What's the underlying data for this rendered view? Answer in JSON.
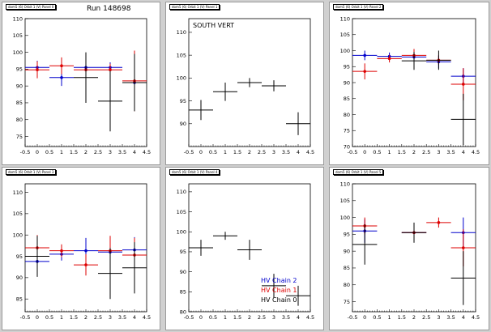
{
  "colors": {
    "chain0": "#000000",
    "chain1": "#dd0000",
    "chain2": "#0000cc",
    "background": "#d0d0d0"
  },
  "legend": [
    {
      "label": "HV Chain 2",
      "color": "#0000cc"
    },
    {
      "label": "HV Chain 1",
      "color": "#dd0000"
    },
    {
      "label": "HV Chain 0",
      "color": "#000000"
    }
  ],
  "pads": [
    {
      "title": "dom5 (6) Orbit 1 (V) Panel 0",
      "label": "Run 148698",
      "xlim": [
        -0.5,
        4.5
      ],
      "ylim": [
        72,
        110
      ],
      "yticks": [
        75,
        80,
        85,
        90,
        95,
        100,
        105,
        110
      ]
    },
    {
      "title": "dom5 (6) Orbit 1 (V) Panel 1",
      "label": "SOUTH VERT",
      "xlim": [
        -0.5,
        4.5
      ],
      "ylim": [
        85,
        113
      ],
      "yticks": [
        90,
        95,
        100,
        105,
        110
      ]
    },
    {
      "title": "dom5 (6) Orbit 1 (V) Panel 2",
      "label": "",
      "xlim": [
        -0.5,
        4.5
      ],
      "ylim": [
        70,
        110
      ],
      "yticks": [
        70,
        75,
        80,
        85,
        90,
        95,
        100,
        105,
        110
      ]
    },
    {
      "title": "dom5 (6) Orbit 1 (V) Panel 3",
      "label": "",
      "xlim": [
        -0.5,
        4.5
      ],
      "ylim": [
        82,
        112
      ],
      "yticks": [
        85,
        90,
        95,
        100,
        105,
        110
      ]
    },
    {
      "title": "dom5 (6) Orbit 1 (V) Panel 4",
      "label": "",
      "xlim": [
        -0.5,
        4.5
      ],
      "ylim": [
        80,
        112
      ],
      "yticks": [
        80,
        85,
        90,
        95,
        100,
        105,
        110
      ]
    },
    {
      "title": "dom5 (6) Orbit 1 (V) Panel 5",
      "label": "",
      "xlim": [
        -0.5,
        4.5
      ],
      "ylim": [
        72,
        110
      ],
      "yticks": [
        75,
        80,
        85,
        90,
        95,
        100,
        105,
        110
      ]
    }
  ],
  "chart_data": [
    {
      "type": "scatter",
      "xlabel": "",
      "ylabel": "",
      "xlim": [
        -0.5,
        4.5
      ],
      "ylim": [
        72,
        110
      ],
      "xticks": [
        -0.5,
        0,
        0.5,
        1,
        1.5,
        2,
        2.5,
        3,
        3.5,
        4,
        4.5
      ],
      "series": [
        {
          "color": "#0000cc",
          "points": [
            {
              "x": 0,
              "y": 95.5,
              "err": 2.0
            },
            {
              "x": 1,
              "y": 92.5,
              "err": 2.5
            },
            {
              "x": 2,
              "y": 95.5,
              "err": 2.0
            },
            {
              "x": 3,
              "y": 95.5,
              "err": 1.5
            },
            {
              "x": 4,
              "y": 91.0,
              "err": 2.5
            }
          ]
        },
        {
          "color": "#dd0000",
          "points": [
            {
              "x": 0,
              "y": 94.8,
              "err": 2.5
            },
            {
              "x": 1,
              "y": 96.0,
              "err": 2.5
            },
            {
              "x": 2,
              "y": 94.8,
              "err": 3.5
            },
            {
              "x": 3,
              "y": 94.8,
              "err": 1.8
            },
            {
              "x": 4,
              "y": 91.5,
              "err": 9.0
            }
          ]
        },
        {
          "color": "#000000",
          "points": [
            {
              "x": 2,
              "y": 92.5,
              "err": 7.5
            },
            {
              "x": 3,
              "y": 85.5,
              "err": 9.0
            },
            {
              "x": 4,
              "y": 91.0,
              "err": 8.5
            }
          ]
        }
      ]
    },
    {
      "type": "scatter",
      "xlabel": "",
      "ylabel": "",
      "xlim": [
        -0.5,
        4.5
      ],
      "ylim": [
        85,
        113
      ],
      "xticks": [
        -0.5,
        0,
        0.5,
        1,
        1.5,
        2,
        2.5,
        3,
        3.5,
        4,
        4.5
      ],
      "series": [
        {
          "color": "#000000",
          "points": [
            {
              "x": 0,
              "y": 93.0,
              "err": 2.2
            },
            {
              "x": 1,
              "y": 97.0,
              "err": 2.0
            },
            {
              "x": 2,
              "y": 99.0,
              "err": 1.0
            },
            {
              "x": 3,
              "y": 98.3,
              "err": 1.2
            },
            {
              "x": 4,
              "y": 90.0,
              "err": 2.5
            }
          ]
        }
      ]
    },
    {
      "type": "scatter",
      "xlabel": "",
      "ylabel": "",
      "xlim": [
        -0.5,
        4.5
      ],
      "ylim": [
        70,
        110
      ],
      "xticks": [
        -0.5,
        0,
        0.5,
        1,
        1.5,
        2,
        2.5,
        3,
        3.5,
        4,
        4.5
      ],
      "series": [
        {
          "color": "#0000cc",
          "points": [
            {
              "x": 0,
              "y": 98.5,
              "err": 1.5
            },
            {
              "x": 1,
              "y": 98.2,
              "err": 1.2
            },
            {
              "x": 2,
              "y": 98.0,
              "err": 1.5
            },
            {
              "x": 3,
              "y": 96.5,
              "err": 2.0
            },
            {
              "x": 4,
              "y": 92.0,
              "err": 2.5
            }
          ]
        },
        {
          "color": "#dd0000",
          "points": [
            {
              "x": 0,
              "y": 93.5,
              "err": 2.5
            },
            {
              "x": 1,
              "y": 97.5,
              "err": 1.2
            },
            {
              "x": 2,
              "y": 98.5,
              "err": 2.0
            },
            {
              "x": 3,
              "y": 97.0,
              "err": 1.5
            },
            {
              "x": 4,
              "y": 89.5,
              "err": 5.0
            }
          ]
        },
        {
          "color": "#000000",
          "points": [
            {
              "x": 2,
              "y": 96.8,
              "err": 2.8
            },
            {
              "x": 3,
              "y": 97.0,
              "err": 3.0
            },
            {
              "x": 4,
              "y": 78.5,
              "err": 8.0
            }
          ]
        }
      ]
    },
    {
      "type": "scatter",
      "xlabel": "",
      "ylabel": "",
      "xlim": [
        -0.5,
        4.5
      ],
      "ylim": [
        82,
        112
      ],
      "xticks": [
        -0.5,
        0,
        0.5,
        1,
        1.5,
        2,
        2.5,
        3,
        3.5,
        4,
        4.5
      ],
      "series": [
        {
          "color": "#0000cc",
          "points": [
            {
              "x": 0,
              "y": 93.8,
              "err": 3.5
            },
            {
              "x": 1,
              "y": 95.5,
              "err": 1.5
            },
            {
              "x": 2,
              "y": 96.3,
              "err": 3.0
            },
            {
              "x": 3,
              "y": 96.0,
              "err": 3.5
            },
            {
              "x": 4,
              "y": 96.5,
              "err": 3.0
            }
          ]
        },
        {
          "color": "#dd0000",
          "points": [
            {
              "x": 0,
              "y": 97.0,
              "err": 3.0
            },
            {
              "x": 1,
              "y": 96.3,
              "err": 1.5
            },
            {
              "x": 2,
              "y": 93.0,
              "err": 2.5
            },
            {
              "x": 3,
              "y": 96.3,
              "err": 3.5
            },
            {
              "x": 4,
              "y": 95.3,
              "err": 4.0
            }
          ]
        },
        {
          "color": "#000000",
          "points": [
            {
              "x": 0,
              "y": 95.0,
              "err": 4.8
            },
            {
              "x": 3,
              "y": 91.0,
              "err": 6.0
            },
            {
              "x": 4,
              "y": 92.3,
              "err": 6.0
            }
          ]
        }
      ]
    },
    {
      "type": "scatter",
      "xlabel": "",
      "ylabel": "",
      "xlim": [
        -0.5,
        4.5
      ],
      "ylim": [
        80,
        112
      ],
      "xticks": [
        -0.5,
        0,
        0.5,
        1,
        1.5,
        2,
        2.5,
        3,
        3.5,
        4,
        4.5
      ],
      "series": [
        {
          "color": "#000000",
          "points": [
            {
              "x": 0,
              "y": 96.0,
              "err": 2.0
            },
            {
              "x": 1,
              "y": 99.0,
              "err": 1.0
            },
            {
              "x": 2,
              "y": 95.5,
              "err": 2.5
            },
            {
              "x": 3,
              "y": 86.5,
              "err": 3.0
            },
            {
              "x": 4,
              "y": 84.0,
              "err": 2.5
            }
          ]
        }
      ]
    },
    {
      "type": "scatter",
      "xlabel": "",
      "ylabel": "",
      "xlim": [
        -0.5,
        4.5
      ],
      "ylim": [
        72,
        110
      ],
      "xticks": [
        -0.5,
        0,
        0.5,
        1,
        1.5,
        2,
        2.5,
        3,
        3.5,
        4,
        4.5
      ],
      "series": [
        {
          "color": "#0000cc",
          "points": [
            {
              "x": 0,
              "y": 96.0,
              "err": 3.5
            },
            {
              "x": 2,
              "y": 95.5,
              "err": 2.0
            },
            {
              "x": 4,
              "y": 95.5,
              "err": 4.5
            }
          ]
        },
        {
          "color": "#dd0000",
          "points": [
            {
              "x": 0,
              "y": 97.5,
              "err": 2.5
            },
            {
              "x": 2,
              "y": 95.5,
              "err": 1.5
            },
            {
              "x": 3,
              "y": 98.5,
              "err": 1.5
            },
            {
              "x": 4,
              "y": 91.0,
              "err": 5.5
            }
          ]
        },
        {
          "color": "#000000",
          "points": [
            {
              "x": 0,
              "y": 92.0,
              "err": 6.0
            },
            {
              "x": 2,
              "y": 95.5,
              "err": 3.0
            },
            {
              "x": 4,
              "y": 82.0,
              "err": 8.0
            }
          ]
        }
      ]
    }
  ]
}
